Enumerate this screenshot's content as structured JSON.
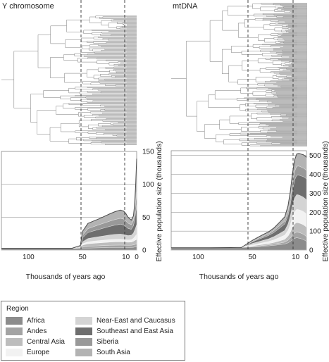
{
  "chart_data": [
    {
      "type": "area",
      "title": "Y chromosome",
      "xlabel": "Thousands of years ago",
      "ylabel": "Effective population size (thousands)",
      "x_reversed": true,
      "xlim": [
        125,
        0
      ],
      "ylim": [
        0,
        150
      ],
      "x_ticks": [
        100,
        50,
        10,
        0
      ],
      "y_ticks": [
        0,
        50,
        100,
        150
      ],
      "dashed_lines_at": [
        50,
        10
      ],
      "x": [
        125,
        70,
        60,
        52,
        50,
        45,
        40,
        35,
        30,
        25,
        20,
        15,
        12,
        10,
        8,
        5,
        3,
        2,
        1,
        0
      ],
      "series": [
        {
          "name": "Africa",
          "values": [
            2.5,
            2.5,
            2.6,
            2.8,
            3,
            3,
            3.2,
            3.4,
            3.6,
            3.8,
            3.9,
            3.9,
            3.8,
            3.8,
            3.8,
            3.9,
            4.2,
            4.5,
            4.8,
            5
          ]
        },
        {
          "name": "Andes",
          "values": [
            0,
            0,
            0,
            0.2,
            1.5,
            2.5,
            2.8,
            3,
            3.2,
            3.4,
            3.5,
            3.6,
            3.6,
            3.5,
            3.4,
            3.4,
            3.6,
            3.8,
            4,
            4
          ]
        },
        {
          "name": "Central Asia",
          "values": [
            0,
            0,
            0,
            0.5,
            3,
            4,
            4.2,
            4.4,
            4.6,
            4.8,
            5,
            5,
            4.9,
            4.8,
            4.7,
            4.8,
            5.5,
            6,
            6.5,
            7
          ]
        },
        {
          "name": "Europe",
          "values": [
            0,
            0,
            0,
            0.3,
            2,
            3,
            3.3,
            3.5,
            3.7,
            3.9,
            4,
            4,
            3.8,
            3.6,
            3.5,
            3.6,
            4.5,
            5.5,
            6.5,
            8
          ]
        },
        {
          "name": "Near-East and Caucasus",
          "values": [
            0,
            0,
            0,
            0.5,
            3,
            5,
            5.5,
            6,
            6.5,
            7,
            7.5,
            7.8,
            7.5,
            7,
            6.5,
            6.8,
            8,
            10,
            12,
            15
          ]
        },
        {
          "name": "Southeast and East Asia",
          "values": [
            0,
            0,
            0,
            1,
            6,
            9,
            10,
            11,
            12,
            13,
            14,
            15,
            14.5,
            13,
            11,
            9,
            11,
            15,
            22,
            30
          ]
        },
        {
          "name": "Siberia",
          "values": [
            0,
            0,
            0,
            0.6,
            4,
            6,
            6.5,
            7,
            7.5,
            8,
            8.5,
            9,
            9,
            8.8,
            8,
            7,
            8,
            11,
            15,
            20
          ]
        },
        {
          "name": "South Asia",
          "values": [
            0,
            0,
            0,
            1,
            6,
            8,
            8.5,
            9,
            10,
            11,
            12,
            12.5,
            12,
            11,
            9,
            7,
            7,
            12,
            25,
            50
          ]
        }
      ]
    },
    {
      "type": "area",
      "title": "mtDNA",
      "xlabel": "Thousands of years ago",
      "ylabel": "Effective population size (thousands)",
      "x_reversed": true,
      "xlim": [
        125,
        0
      ],
      "ylim": [
        0,
        525
      ],
      "x_ticks": [
        100,
        50,
        10,
        0
      ],
      "y_ticks": [
        0,
        100,
        200,
        300,
        400,
        500
      ],
      "dashed_lines_at": [
        50,
        10
      ],
      "x": [
        125,
        90,
        70,
        60,
        50,
        45,
        40,
        35,
        30,
        25,
        20,
        17,
        15,
        13,
        11,
        9,
        7,
        5,
        3,
        1,
        0
      ],
      "series": [
        {
          "name": "Africa",
          "values": [
            12,
            12,
            13,
            14,
            16,
            18,
            20,
            22,
            25,
            28,
            32,
            38,
            45,
            55,
            62,
            65,
            63,
            60,
            56,
            50,
            45
          ]
        },
        {
          "name": "Andes",
          "values": [
            0,
            0,
            0,
            0,
            2,
            3,
            4,
            5,
            6,
            8,
            10,
            14,
            18,
            24,
            28,
            30,
            30,
            29,
            28,
            26,
            25
          ]
        },
        {
          "name": "Central Asia",
          "values": [
            0,
            0,
            0,
            0,
            4,
            5,
            6,
            7,
            9,
            12,
            15,
            22,
            30,
            40,
            48,
            50,
            50,
            50,
            50,
            50,
            50
          ]
        },
        {
          "name": "Europe",
          "values": [
            0,
            0,
            0,
            0,
            5,
            7,
            9,
            11,
            14,
            18,
            22,
            30,
            40,
            55,
            65,
            70,
            70,
            70,
            70,
            70,
            70
          ]
        },
        {
          "name": "Near-East and Caucasus",
          "values": [
            0,
            0,
            0,
            0,
            8,
            10,
            12,
            14,
            17,
            21,
            25,
            34,
            45,
            60,
            72,
            78,
            78,
            77,
            76,
            75,
            75
          ]
        },
        {
          "name": "Southeast and East Asia",
          "values": [
            0,
            0,
            0,
            0,
            8,
            12,
            15,
            18,
            22,
            28,
            34,
            45,
            60,
            78,
            95,
            102,
            105,
            106,
            108,
            110,
            110
          ]
        },
        {
          "name": "Siberia",
          "values": [
            0,
            0,
            0,
            0,
            3,
            5,
            7,
            8,
            10,
            13,
            16,
            22,
            28,
            37,
            45,
            48,
            48,
            47,
            46,
            45,
            45
          ]
        },
        {
          "name": "South Asia",
          "values": [
            0,
            0,
            0,
            0,
            5,
            7,
            9,
            11,
            14,
            18,
            22,
            30,
            40,
            52,
            60,
            65,
            67,
            68,
            70,
            70,
            70
          ]
        }
      ]
    }
  ],
  "legend": {
    "title": "Region",
    "items": [
      {
        "name": "Africa",
        "color": "#8c8c8c"
      },
      {
        "name": "Andes",
        "color": "#a3a3a3"
      },
      {
        "name": "Central Asia",
        "color": "#bdbdbd"
      },
      {
        "name": "Europe",
        "color": "#f2f2f2"
      },
      {
        "name": "Near-East and Caucasus",
        "color": "#d4d4d4"
      },
      {
        "name": "Southeast and East Asia",
        "color": "#6e6e6e"
      },
      {
        "name": "Siberia",
        "color": "#999999"
      },
      {
        "name": "South Asia",
        "color": "#b3b3b3"
      }
    ]
  }
}
